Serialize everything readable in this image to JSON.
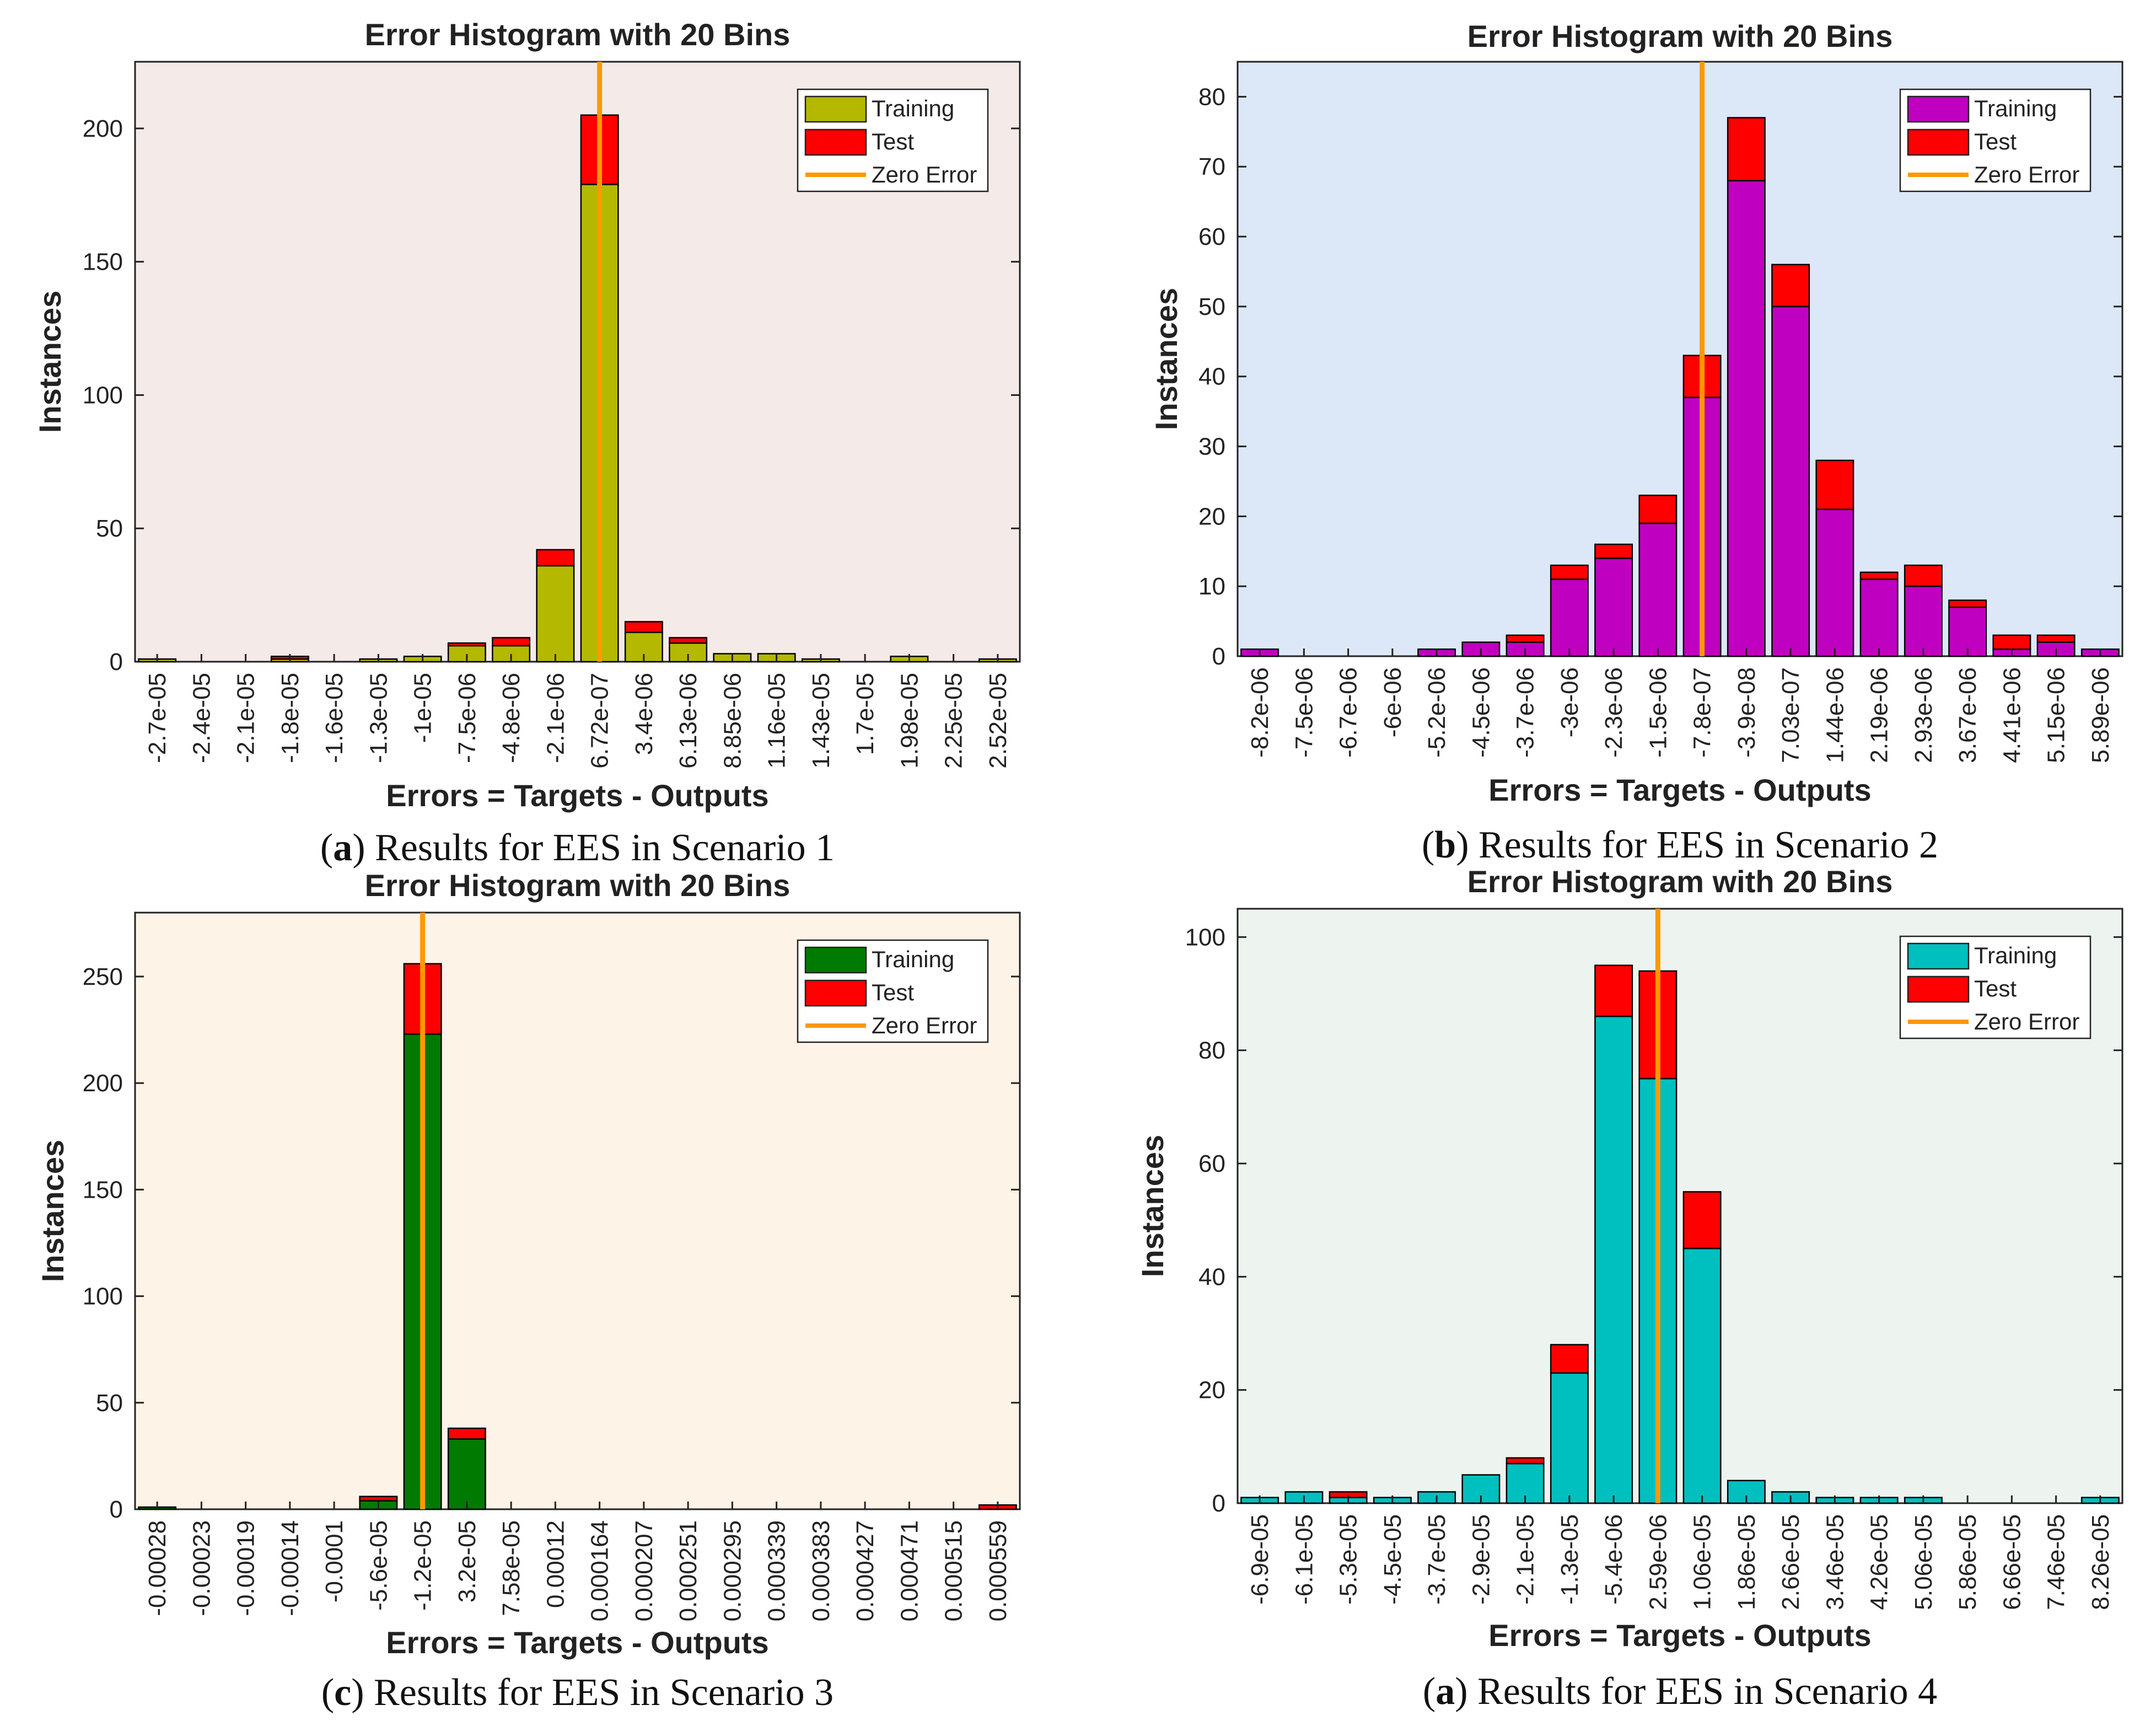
{
  "colors": {
    "test": "#ff0000",
    "zero_error": "#ff9900",
    "bar_stroke": "#000000"
  },
  "chart_data": [
    {
      "type": "bar",
      "stacked": true,
      "title": "Error Histogram with 20 Bins",
      "xlabel": "Errors = Targets - Outputs",
      "ylabel": "Instances",
      "caption_letter": "a",
      "caption_prefix": "(",
      "caption_text": ") Results for EES in Scenario 1",
      "background": "#f4eae8",
      "training_color": "#b5b800",
      "ylim": [
        0,
        225
      ],
      "yticks": [
        0,
        50,
        100,
        150,
        200
      ],
      "ytick_labels": [
        "0",
        "50",
        "100",
        "150",
        "200"
      ],
      "zero_error_bin": 10,
      "categories": [
        "-2.7e-05",
        "-2.4e-05",
        "-2.1e-05",
        "-1.8e-05",
        "-1.6e-05",
        "-1.3e-05",
        "-1e-05",
        "-7.5e-06",
        "-4.8e-06",
        "-2.1e-06",
        "6.72e-07",
        "3.4e-06",
        "6.13e-06",
        "8.85e-06",
        "1.16e-05",
        "1.43e-05",
        "1.7e-05",
        "1.98e-05",
        "2.25e-05",
        "2.52e-05"
      ],
      "series": [
        {
          "name": "Training",
          "values": [
            1,
            0,
            0,
            1,
            0,
            1,
            2,
            6,
            6,
            36,
            179,
            11,
            7,
            3,
            3,
            1,
            0,
            2,
            0,
            1
          ]
        },
        {
          "name": "Test",
          "values": [
            0,
            0,
            0,
            1,
            0,
            0,
            0,
            1,
            3,
            6,
            26,
            4,
            2,
            0,
            0,
            0,
            0,
            0,
            0,
            0
          ]
        }
      ],
      "legend": [
        "Training",
        "Test",
        "Zero Error"
      ],
      "legend_position": "top-right"
    },
    {
      "type": "bar",
      "stacked": true,
      "title": "Error Histogram with 20 Bins",
      "xlabel": "Errors = Targets - Outputs",
      "ylabel": "Instances",
      "caption_letter": "b",
      "caption_prefix": "(",
      "caption_text": ") Results for EES in Scenario 2",
      "background": "#dce8f8",
      "training_color": "#c000c0",
      "ylim": [
        0,
        85
      ],
      "yticks": [
        0,
        10,
        20,
        30,
        40,
        50,
        60,
        70,
        80
      ],
      "ytick_labels": [
        "0",
        "10",
        "20",
        "30",
        "40",
        "50",
        "60",
        "70",
        "80"
      ],
      "zero_error_bin": 10,
      "categories": [
        "-8.2e-06",
        "-7.5e-06",
        "-6.7e-06",
        "-6e-06",
        "-5.2e-06",
        "-4.5e-06",
        "-3.7e-06",
        "-3e-06",
        "-2.3e-06",
        "-1.5e-06",
        "-7.8e-07",
        "-3.9e-08",
        "7.03e-07",
        "1.44e-06",
        "2.19e-06",
        "2.93e-06",
        "3.67e-06",
        "4.41e-06",
        "5.15e-06",
        "5.89e-06"
      ],
      "series": [
        {
          "name": "Training",
          "values": [
            1,
            0,
            0,
            0,
            1,
            2,
            2,
            11,
            14,
            19,
            37,
            68,
            50,
            21,
            11,
            10,
            7,
            1,
            2,
            1
          ]
        },
        {
          "name": "Test",
          "values": [
            0,
            0,
            0,
            0,
            0,
            0,
            1,
            2,
            2,
            4,
            6,
            9,
            6,
            7,
            1,
            3,
            1,
            2,
            1,
            0
          ]
        }
      ],
      "legend": [
        "Training",
        "Test",
        "Zero Error"
      ],
      "legend_position": "top-right"
    },
    {
      "type": "bar",
      "stacked": true,
      "title": "Error Histogram with 20 Bins",
      "xlabel": "Errors = Targets - Outputs",
      "ylabel": "Instances",
      "caption_letter": "c",
      "caption_prefix": "(",
      "caption_text": ") Results for EES in Scenario 3",
      "background": "#fdf3e6",
      "training_color": "#007a00",
      "ylim": [
        0,
        280
      ],
      "yticks": [
        0,
        50,
        100,
        150,
        200,
        250
      ],
      "ytick_labels": [
        "0",
        "50",
        "100",
        "150",
        "200",
        "250"
      ],
      "zero_error_bin": 6,
      "categories": [
        "-0.00028",
        "-0.00023",
        "-0.00019",
        "-0.00014",
        "-0.0001",
        "-5.6e-05",
        "-1.2e-05",
        "3.2e-05",
        "7.58e-05",
        "0.00012",
        "0.000164",
        "0.000207",
        "0.000251",
        "0.000295",
        "0.000339",
        "0.000383",
        "0.000427",
        "0.000471",
        "0.000515",
        "0.000559"
      ],
      "series": [
        {
          "name": "Training",
          "values": [
            1,
            0,
            0,
            0,
            0,
            4,
            223,
            33,
            0,
            0,
            0,
            0,
            0,
            0,
            0,
            0,
            0,
            0,
            0,
            0
          ]
        },
        {
          "name": "Test",
          "values": [
            0,
            0,
            0,
            0,
            0,
            2,
            33,
            5,
            0,
            0,
            0,
            0,
            0,
            0,
            0,
            0,
            0,
            0,
            0,
            2
          ]
        }
      ],
      "legend": [
        "Training",
        "Test",
        "Zero Error"
      ],
      "legend_position": "top-right"
    },
    {
      "type": "bar",
      "stacked": true,
      "title": "Error Histogram with 20 Bins",
      "xlabel": "Errors = Targets - Outputs",
      "ylabel": "Instances",
      "caption_letter": "a",
      "caption_prefix": "(",
      "caption_text": ") Results for EES in Scenario 4",
      "background": "#edf4ef",
      "training_color": "#00bfbf",
      "ylim": [
        0,
        105
      ],
      "yticks": [
        0,
        20,
        40,
        60,
        80,
        100
      ],
      "ytick_labels": [
        "0",
        "20",
        "40",
        "60",
        "80",
        "100"
      ],
      "zero_error_bin": 9,
      "categories": [
        "-6.9e-05",
        "-6.1e-05",
        "-5.3e-05",
        "-4.5e-05",
        "-3.7e-05",
        "-2.9e-05",
        "-2.1e-05",
        "-1.3e-05",
        "-5.4e-06",
        "2.59e-06",
        "1.06e-05",
        "1.86e-05",
        "2.66e-05",
        "3.46e-05",
        "4.26e-05",
        "5.06e-05",
        "5.86e-05",
        "6.66e-05",
        "7.46e-05",
        "8.26e-05"
      ],
      "series": [
        {
          "name": "Training",
          "values": [
            1,
            2,
            1,
            1,
            2,
            5,
            7,
            23,
            86,
            75,
            45,
            4,
            2,
            1,
            1,
            1,
            0,
            0,
            0,
            1
          ]
        },
        {
          "name": "Test",
          "values": [
            0,
            0,
            1,
            0,
            0,
            0,
            1,
            5,
            9,
            19,
            10,
            0,
            0,
            0,
            0,
            0,
            0,
            0,
            0,
            0
          ]
        }
      ],
      "legend": [
        "Training",
        "Test",
        "Zero Error"
      ],
      "legend_position": "top-right"
    }
  ]
}
